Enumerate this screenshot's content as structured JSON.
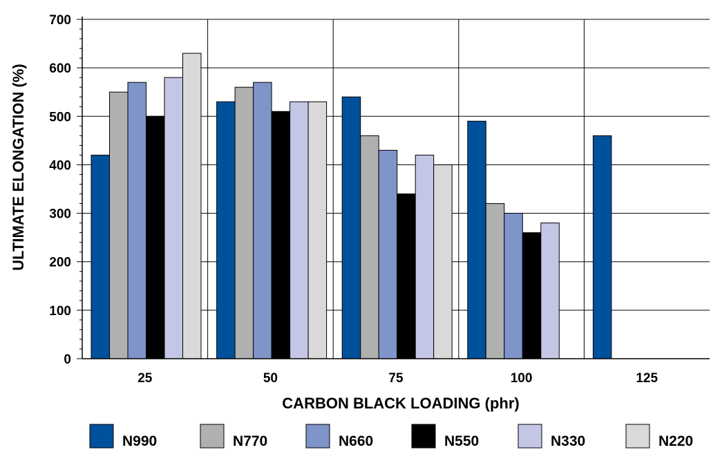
{
  "chart_data": {
    "type": "bar",
    "title": "",
    "xlabel": "CARBON BLACK LOADING (phr)",
    "ylabel": "ULTIMATE ELONGATION (%)",
    "ylim": [
      0,
      700
    ],
    "yticks": [
      "0",
      "100",
      "200",
      "300",
      "400",
      "500",
      "600",
      "700"
    ],
    "categories": [
      "25",
      "50",
      "75",
      "100",
      "125"
    ],
    "grid": true,
    "legend_position": "bottom",
    "series": [
      {
        "name": "N990",
        "color": "#00519c",
        "values": [
          420,
          530,
          540,
          490,
          460
        ]
      },
      {
        "name": "N770",
        "color": "#b0b0b0",
        "values": [
          550,
          560,
          460,
          320,
          null
        ]
      },
      {
        "name": "N660",
        "color": "#7f94c8",
        "values": [
          570,
          570,
          430,
          300,
          null
        ]
      },
      {
        "name": "N550",
        "color": "#000000",
        "values": [
          500,
          510,
          340,
          260,
          null
        ]
      },
      {
        "name": "N330",
        "color": "#c3c6e5",
        "values": [
          580,
          530,
          420,
          280,
          null
        ]
      },
      {
        "name": "N220",
        "color": "#d9d9d9",
        "values": [
          630,
          530,
          400,
          null,
          null
        ]
      }
    ]
  }
}
